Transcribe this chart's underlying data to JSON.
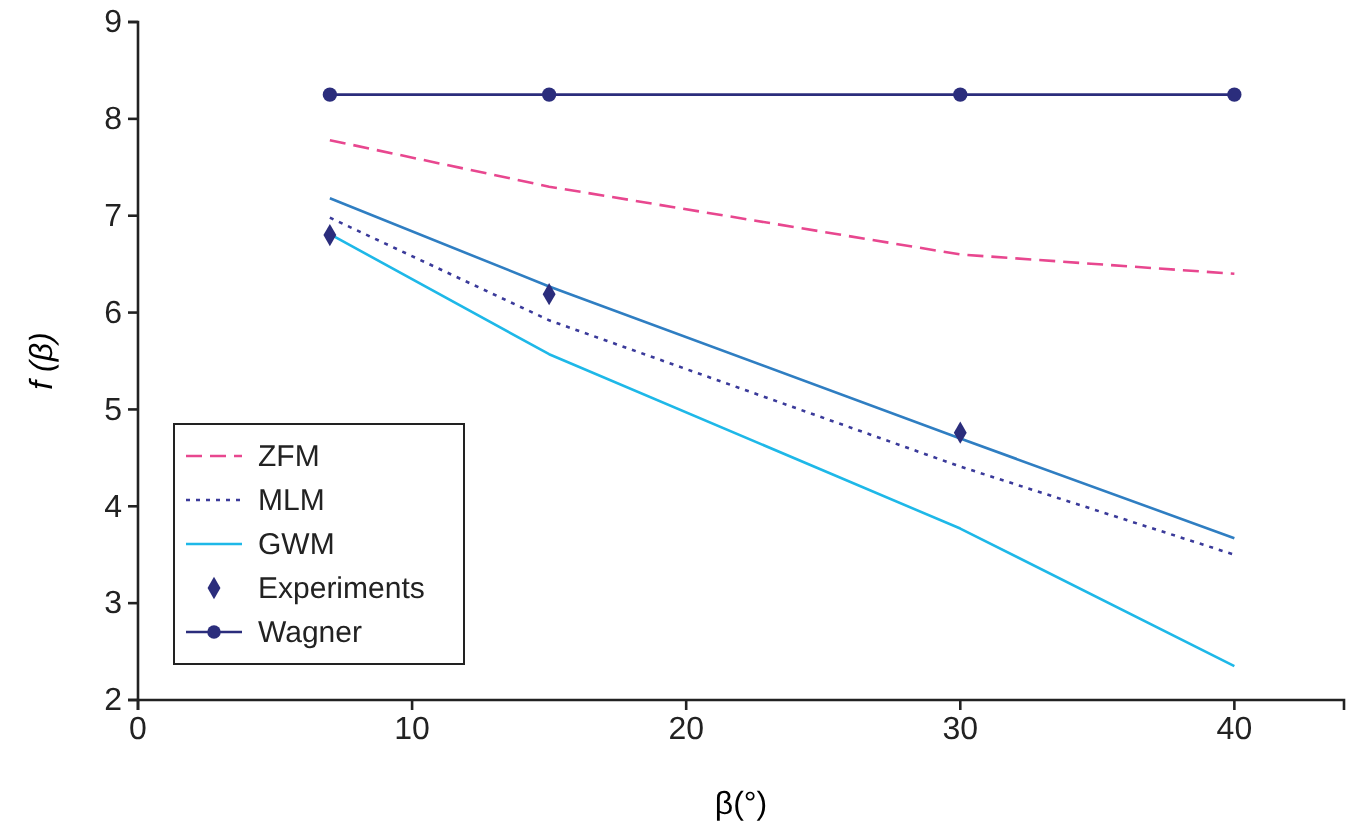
{
  "chart_data": {
    "type": "line",
    "xlabel": "β(°)",
    "ylabel": "f (β)",
    "xlim": [
      0,
      44
    ],
    "ylim": [
      2,
      9
    ],
    "xticks": [
      0,
      10,
      20,
      30,
      40
    ],
    "yticks": [
      2,
      3,
      4,
      5,
      6,
      7,
      8,
      9
    ],
    "legend": "bottom left",
    "grid": false,
    "series": [
      {
        "color": "#2f7ec2",
        "x": [
          7,
          15,
          30,
          40
        ],
        "values": [
          7.18,
          6.27,
          4.7,
          3.67
        ],
        "line_style": "solid",
        "marker": "none"
      },
      {
        "name": "ZFM",
        "color": "#e8478f",
        "x": [
          7,
          15,
          30,
          40
        ],
        "values": [
          7.78,
          7.3,
          6.6,
          6.4
        ],
        "line_style": "dashed",
        "marker": "none"
      },
      {
        "name": "MLM",
        "color": "#3a3a9a",
        "x": [
          7,
          15,
          30,
          40
        ],
        "values": [
          6.98,
          5.92,
          4.41,
          3.5
        ],
        "line_style": "dotted",
        "marker": "none"
      },
      {
        "name": "GWM",
        "color": "#1eb8e8",
        "x": [
          7,
          15,
          30,
          40
        ],
        "values": [
          6.81,
          5.57,
          3.77,
          2.35
        ],
        "line_style": "solid",
        "marker": "none"
      },
      {
        "name": "Experiments",
        "type": "scatter",
        "color": "#2b2d7c",
        "x": [
          7,
          15,
          30
        ],
        "values": [
          6.8,
          6.19,
          4.76
        ],
        "marker": "diamond"
      },
      {
        "name": "Wagner",
        "color": "#2b2d7c",
        "x": [
          7,
          15,
          30,
          40
        ],
        "values": [
          8.25,
          8.25,
          8.25,
          8.25
        ],
        "line_style": "solid",
        "marker": "circle"
      }
    ]
  }
}
